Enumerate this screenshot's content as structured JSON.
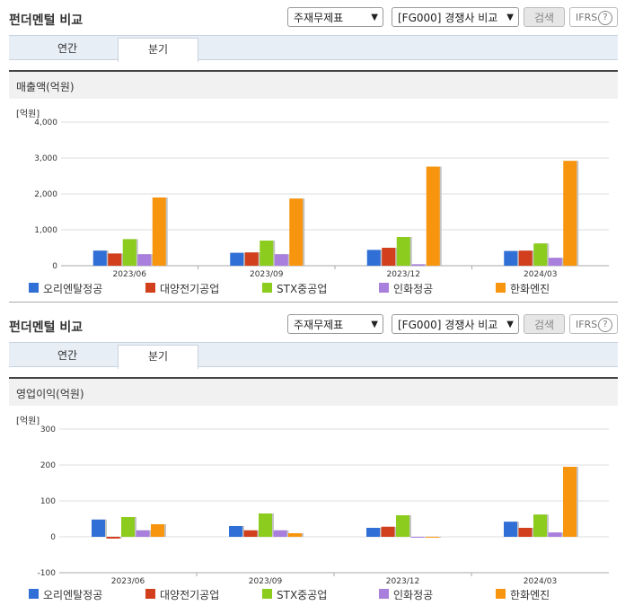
{
  "panels": [
    {
      "title": "펀더멘털 비교",
      "select_statement": "주재무제표",
      "select_peer": "[FG000] 경쟁사 비교",
      "search_label": "검색",
      "ifrs_label": "IFRS",
      "help_icon_text": "?",
      "tabs": [
        {
          "label": "연간"
        },
        {
          "label": "분기"
        }
      ],
      "active_tab": "분기",
      "section_title": "매출액(억원)",
      "unit_label": "[억원]"
    },
    {
      "title": "펀더멘털 비교",
      "select_statement": "주재무제표",
      "select_peer": "[FG000] 경쟁사 비교",
      "search_label": "검색",
      "ifrs_label": "IFRS",
      "help_icon_text": "?",
      "tabs": [
        {
          "label": "연간"
        },
        {
          "label": "분기"
        }
      ],
      "active_tab": "분기",
      "section_title": "영업이익(억원)",
      "unit_label": "[억원]"
    }
  ],
  "legend": [
    "오리엔탈정공",
    "대양전기공업",
    "STX중공업",
    "인화정공",
    "한화엔진"
  ],
  "colors": {
    "series": [
      "#2f6fd6",
      "#d23f1c",
      "#8ccc1e",
      "#a87fdc",
      "#f7950f"
    ],
    "active_tab_bg": "#ffffff",
    "tabbar_bg": "#e8eef5"
  },
  "chart_data": [
    {
      "type": "bar",
      "categories": [
        "2023/06",
        "2023/09",
        "2023/12",
        "2024/03"
      ],
      "ylim": [
        0,
        4000
      ],
      "yticks": [
        "4,000",
        "3,000",
        "2,000",
        "1,000",
        "0"
      ],
      "ytick_values": [
        4000,
        3000,
        2000,
        1000,
        0
      ],
      "series": [
        {
          "name": "오리엔탈정공",
          "values": [
            420,
            360,
            440,
            410
          ]
        },
        {
          "name": "대양전기공업",
          "values": [
            340,
            370,
            500,
            420
          ]
        },
        {
          "name": "STX중공업",
          "values": [
            740,
            700,
            800,
            620
          ]
        },
        {
          "name": "인화정공",
          "values": [
            320,
            320,
            40,
            220
          ]
        },
        {
          "name": "한화엔진",
          "values": [
            1900,
            1870,
            2760,
            2920
          ]
        }
      ]
    },
    {
      "type": "bar",
      "categories": [
        "2023/06",
        "2023/09",
        "2023/12",
        "2024/03"
      ],
      "ylim": [
        -100,
        300
      ],
      "yticks": [
        "300",
        "200",
        "100",
        "0",
        "-100"
      ],
      "ytick_values": [
        300,
        200,
        100,
        0,
        -100
      ],
      "series": [
        {
          "name": "오리엔탈정공",
          "values": [
            48,
            30,
            25,
            42
          ]
        },
        {
          "name": "대양전기공업",
          "values": [
            -5,
            18,
            28,
            25
          ]
        },
        {
          "name": "STX중공업",
          "values": [
            55,
            65,
            60,
            62
          ]
        },
        {
          "name": "인화정공",
          "values": [
            18,
            18,
            -2,
            12
          ]
        },
        {
          "name": "한화엔진",
          "values": [
            35,
            10,
            -1,
            195
          ]
        }
      ]
    }
  ]
}
